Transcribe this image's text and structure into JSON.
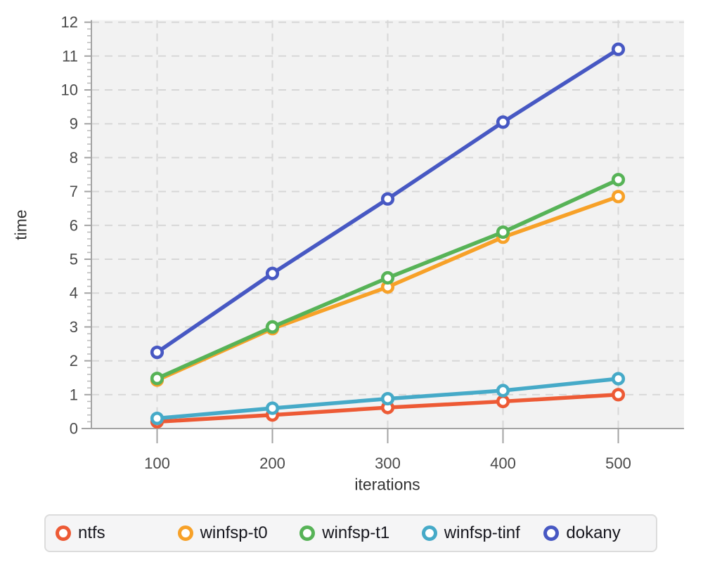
{
  "chart_data": {
    "type": "line",
    "x": [
      100,
      200,
      300,
      400,
      500
    ],
    "xticks": [
      "100",
      "200",
      "300",
      "400",
      "500"
    ],
    "yticks": [
      0,
      1,
      2,
      3,
      4,
      5,
      6,
      7,
      8,
      9,
      10,
      11,
      12
    ],
    "xlabel": "iterations",
    "ylabel": "time",
    "xlim": [
      43,
      557
    ],
    "ylim": [
      0,
      12
    ],
    "grid": "dashed",
    "legend_position": "bottom",
    "plot_bg": "#f2f2f2",
    "grid_color": "#d7d7d7",
    "axis_color": "#a3a3a3",
    "minor_tick_color": "#bdbdbd",
    "tick_label_color": "#4a4a4a",
    "series": [
      {
        "name": "ntfs",
        "color": "#ed5a35",
        "values": [
          0.2,
          0.4,
          0.62,
          0.8,
          1.0
        ]
      },
      {
        "name": "winfsp-t0",
        "color": "#f7a128",
        "values": [
          1.43,
          2.95,
          4.18,
          5.65,
          6.85
        ]
      },
      {
        "name": "winfsp-t1",
        "color": "#57b357",
        "values": [
          1.48,
          3.0,
          4.45,
          5.8,
          7.35
        ]
      },
      {
        "name": "winfsp-tinf",
        "color": "#46aac8",
        "values": [
          0.3,
          0.6,
          0.88,
          1.12,
          1.47
        ]
      },
      {
        "name": "dokany",
        "color": "#4758c3",
        "values": [
          2.25,
          4.58,
          6.78,
          9.05,
          11.2
        ]
      }
    ]
  }
}
